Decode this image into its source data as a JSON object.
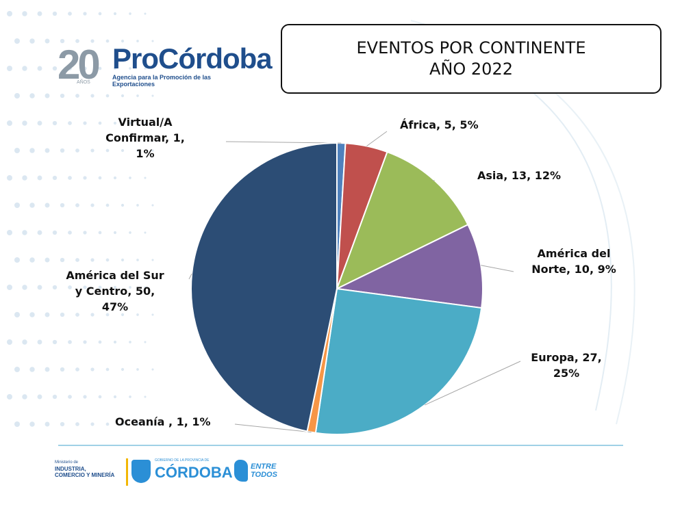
{
  "logo": {
    "number": "20",
    "anos": "AÑOS",
    "brand": "ProCórdoba",
    "tagline": "Agencia para la Promoción de las Exportaciones"
  },
  "title": {
    "line1": "EVENTOS POR CONTINENTE",
    "line2": "AÑO 2022"
  },
  "chart_data": {
    "type": "pie",
    "title": "EVENTOS POR CONTINENTE AÑO 2022",
    "slices": [
      {
        "label": "Virtual/A Confirmar",
        "value": 1,
        "percent": 1,
        "color": "#4f81bd",
        "text_lines": [
          "Virtual/A",
          "Confirmar, 1,",
          "1%"
        ]
      },
      {
        "label": "África",
        "value": 5,
        "percent": 5,
        "color": "#c0504d",
        "text_lines": [
          "África, 5, 5%"
        ]
      },
      {
        "label": "Asia",
        "value": 13,
        "percent": 12,
        "color": "#9bbb59",
        "text_lines": [
          "Asia, 13, 12%"
        ]
      },
      {
        "label": "América del Norte",
        "value": 10,
        "percent": 9,
        "color": "#8064a2",
        "text_lines": [
          "América del",
          "Norte, 10, 9%"
        ]
      },
      {
        "label": "Europa",
        "value": 27,
        "percent": 25,
        "color": "#4bacc6",
        "text_lines": [
          "Europa, 27,",
          "25%"
        ]
      },
      {
        "label": "Oceanía",
        "value": 1,
        "percent": 1,
        "color": "#f79646",
        "text_lines": [
          "Oceanía , 1, 1%"
        ]
      },
      {
        "label": "América del Sur y Centro",
        "value": 50,
        "percent": 47,
        "color": "#2c4d75",
        "text_lines": [
          "América del Sur",
          "y Centro, 50,",
          "47%"
        ]
      }
    ]
  },
  "footer": {
    "ministerio_small": "Ministerio de",
    "ministerio_line1": "INDUSTRIA,",
    "ministerio_line2": "COMERCIO Y MINERÍA",
    "gobierno": "GOBIERNO DE LA PROVINCIA DE",
    "cordoba": "CÓRDOBA",
    "entre_line1": "ENTRE",
    "entre_line2": "TODOS"
  },
  "colors": {
    "accent_blue": "#1f4e8c",
    "footer_line": "#9fd1e6"
  }
}
